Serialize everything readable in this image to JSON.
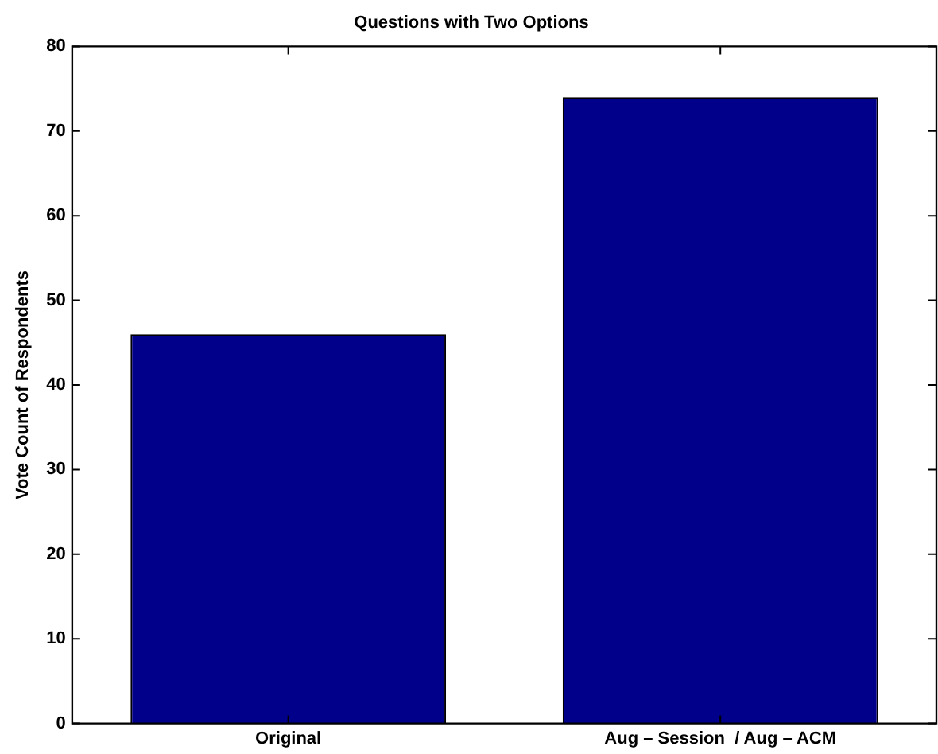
{
  "chart_data": {
    "type": "bar",
    "title": "Questions with Two Options",
    "ylabel": "Vote Count of Respondents",
    "categories": [
      "Original",
      "Aug – Session  / Aug – ACM"
    ],
    "values": [
      46,
      74
    ],
    "color": "#00008b",
    "ylim": [
      0,
      80
    ],
    "yticks": [
      0,
      10,
      20,
      30,
      40,
      50,
      60,
      70,
      80
    ],
    "grid": false,
    "legend": false
  }
}
